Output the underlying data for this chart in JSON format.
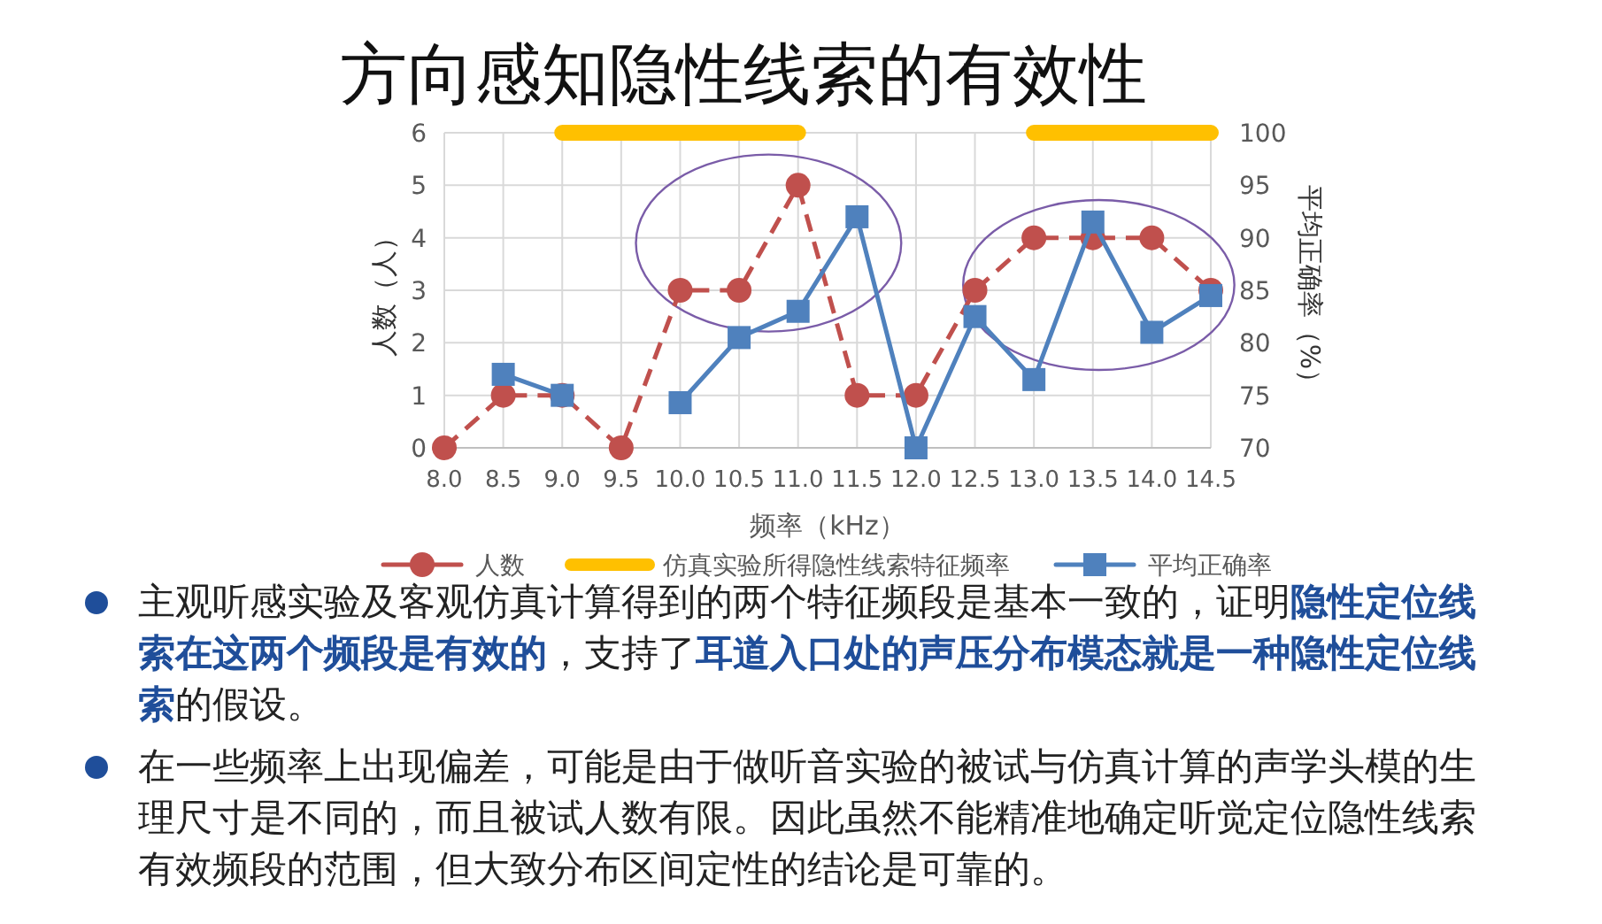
{
  "chart_data": {
    "type": "line",
    "title": "方向感知隐性线索的有效性",
    "xlabel": "频率（kHz）",
    "ylabel": "人数（人）",
    "y2label": "平均正确率（%）",
    "categories": [
      "8.0",
      "8.5",
      "9.0",
      "9.5",
      "10.0",
      "10.5",
      "11.0",
      "11.5",
      "12.0",
      "12.5",
      "13.0",
      "13.5",
      "14.0",
      "14.5"
    ],
    "series": [
      {
        "name": "人数",
        "color": "#c0504d",
        "marker": "circle",
        "line_style": "dashed",
        "values": [
          0,
          1,
          1,
          0,
          3,
          3,
          5,
          1,
          1,
          3,
          4,
          4,
          4,
          3
        ]
      },
      {
        "name": "仿真实验所得隐性线索特征频率",
        "color": "#ffc000",
        "marker": "none",
        "line_style": "solid",
        "values": [
          null,
          null,
          6,
          6,
          6,
          6,
          6,
          null,
          null,
          null,
          6,
          6,
          6,
          6
        ]
      },
      {
        "name": "平均正确率",
        "color": "#4f81bd",
        "marker": "square",
        "line_style": "solid",
        "axis": "y2",
        "values": [
          null,
          77,
          75,
          null,
          74.3,
          80.5,
          83,
          92,
          70,
          82.5,
          76.5,
          91.5,
          81,
          84.5
        ]
      }
    ],
    "ylim": [
      0,
      6
    ],
    "yticks": [
      0,
      1,
      2,
      3,
      4,
      5,
      6
    ],
    "y2lim": [
      70,
      100
    ],
    "y2ticks": [
      70,
      75,
      80,
      85,
      90,
      95,
      100
    ],
    "grid": true,
    "legend": "bottom",
    "annotations": [
      "主观听感实验及客观仿真计算得到的两个特征频段是基本一致的，证明**隐性定位线索在这两个频段是有效的**，支持了**耳道入口处的声压分布模态就是一种隐性定位线索**的假设。",
      "在一些频率上出现偏差，可能是由于做听音实验的被试与仿真计算的声学头模的生理尺寸是不同的，而且被试人数有限。因此虽然不能精准地确定听觉定位隐性线索有效频段的范围，但大致分布区间定性的结论是可靠的。"
    ]
  }
}
